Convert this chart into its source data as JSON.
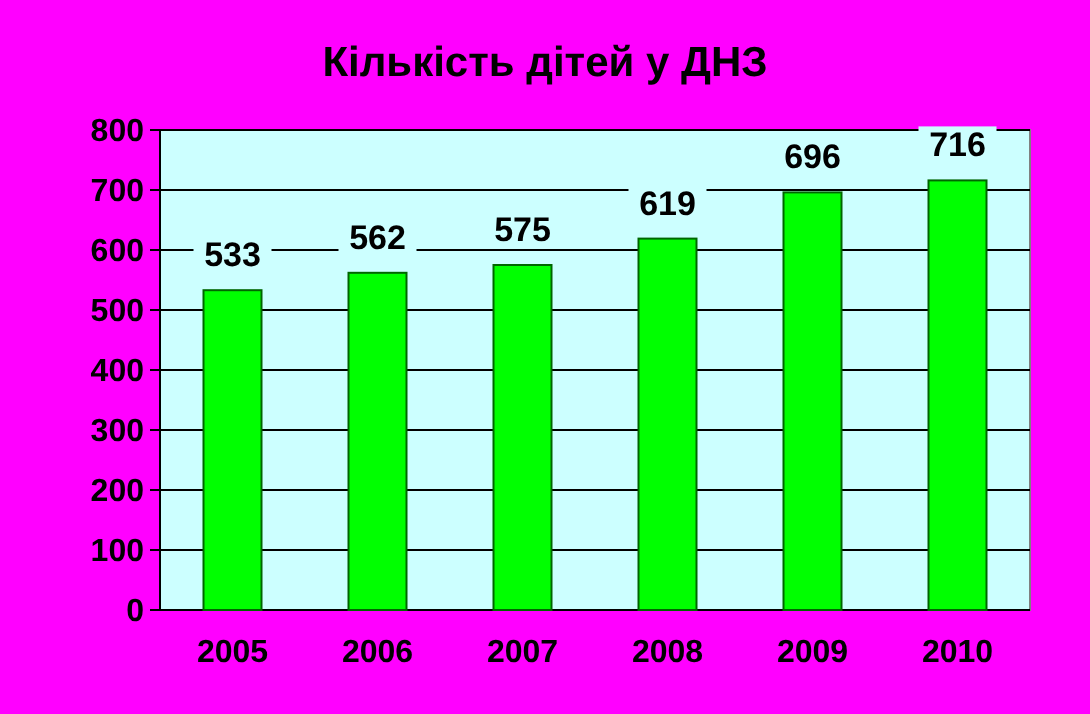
{
  "chart_data": {
    "type": "bar",
    "title": "Кількість дітей у ДНЗ",
    "categories": [
      "2005",
      "2006",
      "2007",
      "2008",
      "2009",
      "2010"
    ],
    "values": [
      533,
      562,
      575,
      619,
      696,
      716
    ],
    "color": "#00ff00",
    "ylim": [
      0,
      800
    ],
    "yticks": [
      0,
      100,
      200,
      300,
      400,
      500,
      600,
      700,
      800
    ],
    "grid": "y",
    "data_labels": true
  }
}
